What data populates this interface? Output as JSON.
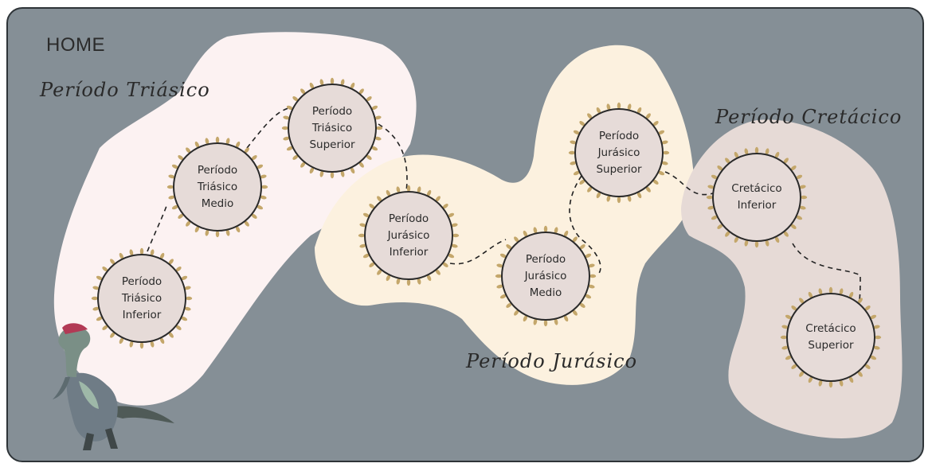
{
  "nav": {
    "home_label": "HOME"
  },
  "periods": {
    "triasico": {
      "title": "Período Triásico"
    },
    "jurasico": {
      "title": "Período Jurásico"
    },
    "cretacico": {
      "title": "Período Cretácico"
    }
  },
  "nodes": {
    "triasico_inferior": "Período\nTriásico\nInferior",
    "triasico_medio": "Período\nTriásico\nMedio",
    "triasico_superior": "Período\nTriásico\nSuperior",
    "jurasico_inferior": "Período\nJurásico\nInferior",
    "jurasico_medio": "Período\nJurásico\nMedio",
    "jurasico_superior": "Período\nJurásico\nSuperior",
    "cretacico_inferior": "Cretácico\nInferior",
    "cretacico_superior": "Cretácico\nSuperior"
  },
  "colors": {
    "background": "#858f96",
    "triasico_region": "#fcf2f2",
    "jurasico_region": "#fcf1df",
    "cretacico_region": "#e6dad6",
    "node_fill": "#e6dbd8",
    "node_ring": "#c4a76b"
  },
  "icons": {
    "mascot": "dinosaur-icon",
    "node_ring": "ornamental-ring-icon"
  }
}
